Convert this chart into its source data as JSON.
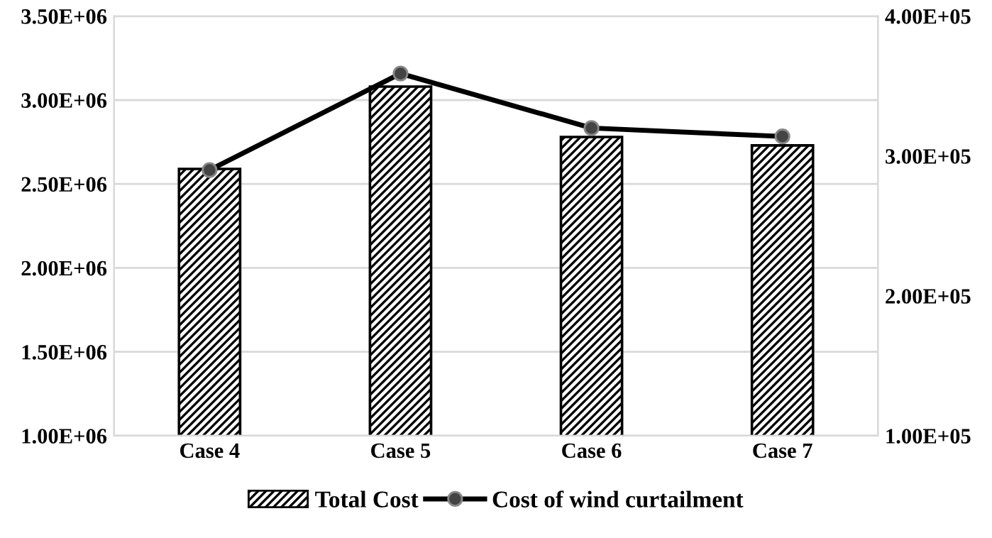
{
  "chart_data": {
    "type": "bar",
    "categories": [
      "Case 4",
      "Case 5",
      "Case 6",
      "Case 7"
    ],
    "series": [
      {
        "name": "Total Cost",
        "color": "#000000",
        "values": [
          2590000,
          3080000,
          2780000,
          2730000
        ]
      },
      {
        "name": "Cost of wind curtailment",
        "type": "line",
        "axis": "y2",
        "color": "#000000",
        "values": [
          290000,
          359000,
          320000,
          314000
        ]
      }
    ],
    "ylim": [
      1000000,
      3500000
    ],
    "yticks": [
      {
        "value": 1000000,
        "label": "1.00E+06"
      },
      {
        "value": 1500000,
        "label": "1.50E+06"
      },
      {
        "value": 2000000,
        "label": "2.00E+06"
      },
      {
        "value": 2500000,
        "label": "2.50E+06"
      },
      {
        "value": 3000000,
        "label": "3.00E+06"
      },
      {
        "value": 3500000,
        "label": "3.50E+06"
      }
    ],
    "y2lim": [
      100000,
      400000
    ],
    "y2ticks": [
      {
        "value": 100000,
        "label": "1.00E+05"
      },
      {
        "value": 200000,
        "label": "2.00E+05"
      },
      {
        "value": 300000,
        "label": "3.00E+05"
      },
      {
        "value": 400000,
        "label": "4.00E+05"
      }
    ],
    "grid": "y",
    "legend": "bottom",
    "marker": "circle",
    "line_style": "solid"
  }
}
